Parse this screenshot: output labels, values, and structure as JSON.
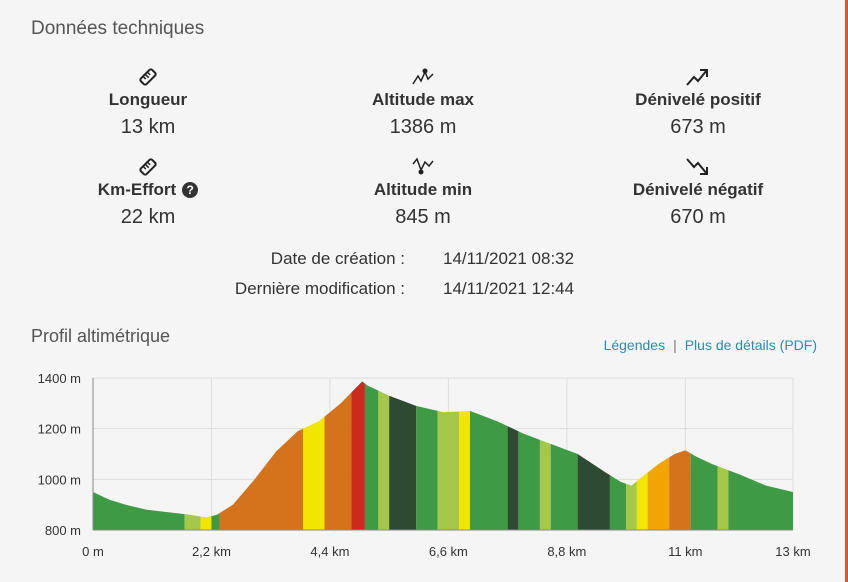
{
  "tech": {
    "title": "Données techniques",
    "stats": [
      {
        "icon": "ruler-icon",
        "label": "Longueur",
        "value": "13 km"
      },
      {
        "icon": "peak-max-icon",
        "label": "Altitude max",
        "value": "1386 m"
      },
      {
        "icon": "ascent-icon",
        "label": "Dénivelé positif",
        "value": "673 m"
      },
      {
        "icon": "ruler-icon",
        "label": "Km-Effort",
        "value": "22 km",
        "help": "?"
      },
      {
        "icon": "peak-min-icon",
        "label": "Altitude min",
        "value": "845 m"
      },
      {
        "icon": "descent-icon",
        "label": "Dénivelé négatif",
        "value": "670 m"
      }
    ],
    "created_label": "Date de création :",
    "created_value": "14/11/2021 08:32",
    "modified_label": "Dernière modification :",
    "modified_value": "14/11/2021 12:44"
  },
  "profile": {
    "title": "Profil altimétrique",
    "legend_link": "Légendes",
    "separator": "|",
    "pdf_link": "Plus de détails (PDF)"
  },
  "colors": {
    "accent_border": "#e0533a",
    "link": "#2a8cb5",
    "dark_green": "#2e4a33",
    "green": "#3f9a45",
    "light_green": "#a6c84a",
    "yellow": "#f2e600",
    "orange": "#d4731c",
    "amber": "#f0a500",
    "red": "#cc2a1e"
  },
  "chart_data": {
    "type": "area",
    "xlabel": "",
    "ylabel": "",
    "x_unit": "km",
    "y_unit": "m",
    "xlim": [
      0,
      13
    ],
    "ylim": [
      800,
      1400
    ],
    "x_ticks": [
      0,
      2.2,
      4.4,
      6.6,
      8.8,
      11,
      13
    ],
    "x_tick_labels": [
      "0 m",
      "2,2 km",
      "4,4 km",
      "6,6 km",
      "8,8 km",
      "11 km",
      "13 km"
    ],
    "y_ticks": [
      800,
      1000,
      1200,
      1400
    ],
    "y_tick_labels": [
      "800 m",
      "1000 m",
      "1200 m",
      "1400 m"
    ],
    "grid": true,
    "series": [
      {
        "x": [
          0,
          0.3,
          0.6,
          1.0,
          1.4,
          1.8,
          2.1,
          2.3,
          2.6,
          3.0,
          3.4,
          3.8,
          4.2,
          4.6,
          4.9,
          5.0,
          5.1,
          5.5,
          6.0,
          6.5,
          7.0,
          7.5,
          8.0,
          8.5,
          9.0,
          9.5,
          9.8,
          10.0,
          10.2,
          10.5,
          10.8,
          11.0,
          11.2,
          11.5,
          12.0,
          12.5,
          13.0
        ],
        "y": [
          950,
          920,
          900,
          880,
          870,
          860,
          850,
          860,
          900,
          1000,
          1110,
          1190,
          1230,
          1300,
          1365,
          1386,
          1370,
          1330,
          1290,
          1265,
          1270,
          1230,
          1180,
          1140,
          1100,
          1030,
          990,
          975,
          1010,
          1060,
          1100,
          1115,
          1090,
          1060,
          1020,
          975,
          950
        ]
      }
    ],
    "segments": [
      {
        "from": 0,
        "to": 1.7,
        "color": "green"
      },
      {
        "from": 1.7,
        "to": 2.0,
        "color": "light_green"
      },
      {
        "from": 2.0,
        "to": 2.2,
        "color": "yellow"
      },
      {
        "from": 2.2,
        "to": 2.35,
        "color": "green"
      },
      {
        "from": 2.35,
        "to": 3.9,
        "color": "orange"
      },
      {
        "from": 3.9,
        "to": 4.3,
        "color": "yellow"
      },
      {
        "from": 4.3,
        "to": 4.8,
        "color": "orange"
      },
      {
        "from": 4.8,
        "to": 5.05,
        "color": "red"
      },
      {
        "from": 5.05,
        "to": 5.3,
        "color": "green"
      },
      {
        "from": 5.3,
        "to": 5.5,
        "color": "light_green"
      },
      {
        "from": 5.5,
        "to": 6.0,
        "color": "dark_green"
      },
      {
        "from": 6.0,
        "to": 6.4,
        "color": "green"
      },
      {
        "from": 6.4,
        "to": 6.8,
        "color": "light_green"
      },
      {
        "from": 6.8,
        "to": 7.0,
        "color": "yellow"
      },
      {
        "from": 7.0,
        "to": 7.7,
        "color": "green"
      },
      {
        "from": 7.7,
        "to": 7.9,
        "color": "dark_green"
      },
      {
        "from": 7.9,
        "to": 8.3,
        "color": "green"
      },
      {
        "from": 8.3,
        "to": 8.5,
        "color": "light_green"
      },
      {
        "from": 8.5,
        "to": 9.0,
        "color": "green"
      },
      {
        "from": 9.0,
        "to": 9.6,
        "color": "dark_green"
      },
      {
        "from": 9.6,
        "to": 9.9,
        "color": "green"
      },
      {
        "from": 9.9,
        "to": 10.1,
        "color": "light_green"
      },
      {
        "from": 10.1,
        "to": 10.3,
        "color": "yellow"
      },
      {
        "from": 10.3,
        "to": 10.7,
        "color": "amber"
      },
      {
        "from": 10.7,
        "to": 11.1,
        "color": "orange"
      },
      {
        "from": 11.1,
        "to": 11.6,
        "color": "green"
      },
      {
        "from": 11.6,
        "to": 11.8,
        "color": "light_green"
      },
      {
        "from": 11.8,
        "to": 13.0,
        "color": "green"
      }
    ]
  }
}
